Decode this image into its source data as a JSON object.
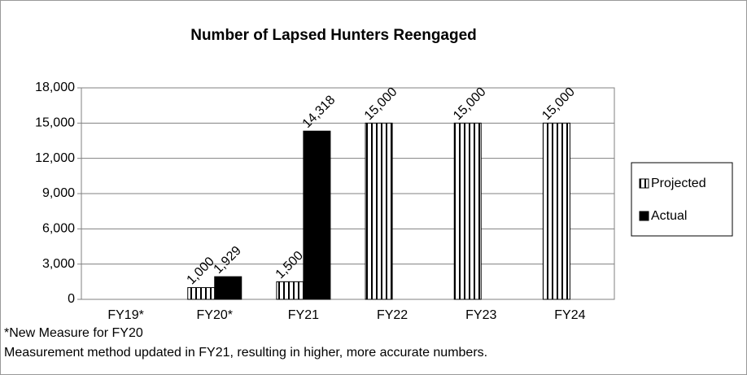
{
  "chart_data": {
    "type": "bar",
    "title": "Number of Lapsed Hunters Reengaged",
    "categories": [
      "FY19*",
      "FY20*",
      "FY21",
      "FY22",
      "FY23",
      "FY24"
    ],
    "series": [
      {
        "name": "Projected",
        "color": "#ffffff",
        "pattern": "vertical-stripes",
        "values": [
          null,
          1000,
          1500,
          15000,
          15000,
          15000
        ],
        "value_labels": [
          null,
          "1,000",
          "1,500",
          "15,000",
          "15,000",
          "15,000"
        ]
      },
      {
        "name": "Actual",
        "color": "#000000",
        "values": [
          null,
          1929,
          14318,
          null,
          null,
          null
        ],
        "value_labels": [
          null,
          "1,929",
          "14,318",
          null,
          null,
          null
        ]
      }
    ],
    "ylim": [
      0,
      18000
    ],
    "yticks": [
      0,
      {
        "value": 3000,
        "label": "3,000"
      },
      {
        "value": 6000,
        "label": "6,000"
      },
      {
        "value": 9000,
        "label": "9,000"
      },
      {
        "value": 12000,
        "label": "12,000"
      },
      {
        "value": 15000,
        "label": "15,000"
      },
      {
        "value": 18000,
        "label": "18,000"
      }
    ],
    "grid": true,
    "legend": "right",
    "notes": [
      "*New Measure for FY20",
      "Measurement method updated in FY21, resulting in higher, more accurate numbers."
    ]
  }
}
